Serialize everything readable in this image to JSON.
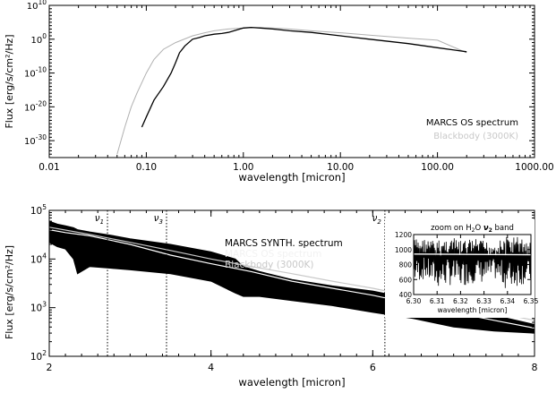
{
  "chart_data": [
    {
      "type": "line",
      "xlabel": "wavelength [micron]",
      "ylabel": "Flux [erg/s/cm²/Hz]",
      "xscale": "log",
      "yscale": "log",
      "xlim": [
        0.01,
        1000
      ],
      "ylim": [
        1e-35,
        10000000000.0
      ],
      "x_ticks": [
        "0.01",
        "0.10",
        "1.00",
        "10.00",
        "100.00",
        "1000.00"
      ],
      "y_ticks": [
        {
          "base": "10",
          "exp": "10"
        },
        {
          "base": "10",
          "exp": "0"
        },
        {
          "base": "10",
          "exp": "-10"
        },
        {
          "base": "10",
          "exp": "-20"
        },
        {
          "base": "10",
          "exp": "-30"
        }
      ],
      "legend_position": "bottom-right",
      "series": [
        {
          "name": "MARCS OS spectrum",
          "color": "#000000",
          "x": [
            0.09,
            0.1,
            0.12,
            0.15,
            0.18,
            0.2,
            0.22,
            0.25,
            0.3,
            0.35,
            0.4,
            0.5,
            0.6,
            0.7,
            0.8,
            1.0,
            1.2,
            1.5,
            2,
            3,
            5,
            10,
            20,
            50,
            100,
            200
          ],
          "y": [
            1e-26,
            1e-23,
            1e-18,
            1e-14,
            1e-10,
            1e-07,
            0.0001,
            0.01,
            1,
            3,
            10,
            30,
            50,
            100,
            300,
            2000,
            3000,
            2000,
            1000,
            300,
            100,
            10,
            1,
            0.05,
            0.003,
            0.0002
          ]
        },
        {
          "name": "Blackbody (3000K)",
          "color": "#b0b0b0",
          "x": [
            0.05,
            0.06,
            0.07,
            0.08,
            0.1,
            0.12,
            0.15,
            0.2,
            0.3,
            0.4,
            0.5,
            0.7,
            1.0,
            1.5,
            2,
            3,
            5,
            10,
            20,
            50,
            100,
            200
          ],
          "y": [
            1e-34,
            1e-26,
            1e-20,
            1e-16,
            1e-10,
            1e-06,
            0.001,
            0.1,
            10,
            80,
            300,
            1000,
            2000,
            2500,
            2000,
            1000,
            300,
            80,
            15,
            2,
            0.5,
            0.0001
          ]
        }
      ]
    },
    {
      "type": "line",
      "xlabel": "wavelength [micron]",
      "ylabel": "Flux [erg/s/cm²/Hz]",
      "xscale": "linear",
      "yscale": "log",
      "xlim": [
        2,
        8
      ],
      "ylim": [
        100,
        100000
      ],
      "x_ticks": [
        "2",
        "4",
        "6",
        "8"
      ],
      "y_ticks": [
        {
          "base": "10",
          "exp": "5"
        },
        {
          "base": "10",
          "exp": "4"
        },
        {
          "base": "10",
          "exp": "3"
        },
        {
          "base": "10",
          "exp": "2"
        }
      ],
      "legend_position": "top-center",
      "legend": [
        {
          "name": "MARCS SYNTH. spectrum",
          "color": "#000000"
        },
        {
          "name": "MARCS OS spectrum",
          "color": "#ffffff"
        },
        {
          "name": "Blackbody (3000K)",
          "color": "#c8c8c8"
        }
      ],
      "band_markers": [
        {
          "label": "ν",
          "sub": "1",
          "x": 2.72
        },
        {
          "label": "ν",
          "sub": "3",
          "x": 3.45
        },
        {
          "label": "ν",
          "sub": "2",
          "x": 6.15
        }
      ],
      "series": [
        {
          "name": "MARCS SYNTH. spectrum",
          "color": "#000000",
          "x": [
            2.0,
            2.1,
            2.2,
            2.3,
            2.35,
            2.5,
            2.75,
            3.0,
            3.5,
            4.0,
            4.3,
            4.4,
            4.6,
            5.0,
            5.5,
            6.0,
            6.5,
            7.0,
            7.5,
            8.0
          ],
          "y_upper": [
            60000,
            52000,
            48000,
            44000,
            40000,
            36000,
            31000,
            26000,
            20000,
            14000,
            10000,
            7000,
            5500,
            3800,
            2800,
            2200,
            1500,
            1100,
            700,
            450
          ],
          "y_lower": [
            22000,
            18000,
            16000,
            10000,
            5000,
            7000,
            6500,
            6000,
            5000,
            3500,
            2000,
            1700,
            1700,
            1400,
            1100,
            800,
            600,
            400,
            330,
            300
          ]
        },
        {
          "name": "MARCS OS spectrum",
          "color": "#ffffff",
          "x": [
            2.0,
            2.2,
            2.5,
            3.0,
            3.5,
            4.0,
            4.5,
            5.0,
            5.5,
            6.0,
            6.5,
            7.0,
            7.5,
            8.0
          ],
          "y": [
            40000,
            35000,
            30000,
            20000,
            12000,
            8000,
            5500,
            3500,
            2500,
            1800,
            1200,
            800,
            550,
            380
          ]
        },
        {
          "name": "Blackbody (3000K)",
          "color": "#c8c8c8",
          "x": [
            2.0,
            2.5,
            3.0,
            3.5,
            4.0,
            4.5,
            5.0,
            5.5,
            6.0,
            6.5,
            7.0,
            7.5,
            8.0
          ],
          "y": [
            45000,
            32000,
            22000,
            15000,
            10000,
            7000,
            5000,
            3500,
            2500,
            1700,
            1200,
            800,
            550
          ]
        }
      ]
    },
    {
      "type": "line",
      "title": "zoom on H₂O ν₂ band",
      "title_parts": {
        "pre": "zoom on H",
        "sub1": "2",
        "mid": "O ",
        "nu": "ν",
        "sub2": "2",
        "post": " band"
      },
      "xlabel": "wavelength [micron]",
      "yscale": "linear",
      "xlim": [
        6.3,
        6.35
      ],
      "ylim": [
        400,
        1200
      ],
      "x_ticks": [
        "6.30",
        "6.31",
        "6.32",
        "6.33",
        "6.34",
        "6.35"
      ],
      "y_ticks": [
        "1200",
        "1000",
        "800",
        "600",
        "400"
      ],
      "series": [
        {
          "name": "MARCS SYNTH. spectrum",
          "color": "#000000",
          "x": [
            6.3,
            6.305,
            6.31,
            6.315,
            6.32,
            6.325,
            6.33,
            6.335,
            6.34,
            6.345,
            6.35
          ],
          "y_upper": [
            1150,
            1150,
            1120,
            1180,
            1120,
            1150,
            1120,
            1100,
            1180,
            1180,
            1100
          ],
          "y_lower": [
            550,
            600,
            480,
            520,
            500,
            550,
            550,
            600,
            450,
            520,
            550
          ]
        },
        {
          "name": "MARCS OS spectrum",
          "color": "#ffffff",
          "x": [
            6.3,
            6.35
          ],
          "y": [
            940,
            930
          ]
        }
      ]
    }
  ]
}
